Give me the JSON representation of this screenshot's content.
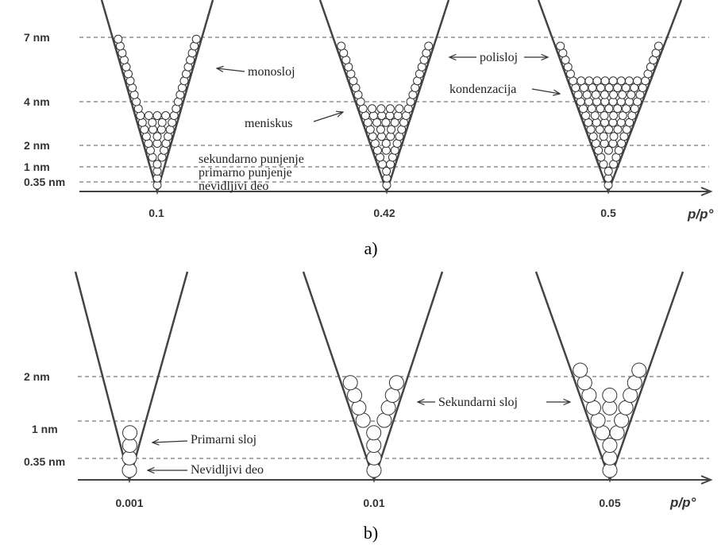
{
  "panels": [
    {
      "label": "a)",
      "levels": [
        "7 nm",
        "4 nm",
        "2 nm",
        "1 nm",
        "0.35 nm"
      ],
      "pressures": [
        "0.1",
        "0.42",
        "0.5"
      ],
      "axis_label": "p/p°",
      "annotations": [
        "monosloj",
        "polisloj",
        "kondenzacija",
        "meniskus",
        "sekundarno punjenje",
        "primarno punjenje",
        "nevidljivi deo"
      ]
    },
    {
      "label": "b)",
      "levels": [
        "2 nm",
        "1 nm",
        "0.35 nm"
      ],
      "pressures": [
        "0.001",
        "0.01",
        "0.05"
      ],
      "axis_label": "p/p°",
      "annotations": [
        "Primarni sloj",
        "Nevidljivi deo",
        "Sekundarni sloj"
      ]
    }
  ]
}
